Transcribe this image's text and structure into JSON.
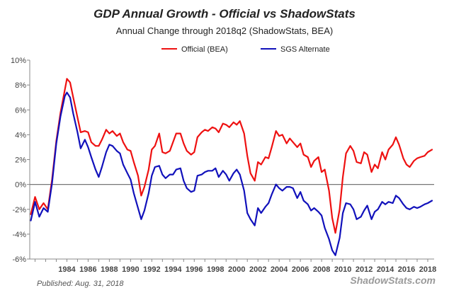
{
  "chart_data": {
    "type": "line",
    "title": "GDP Annual Growth - Official vs ShadowStats",
    "subtitle": "Annual Change through 2018q2  (ShadowStats, BEA)",
    "xlabel": "",
    "ylabel": "",
    "ylim": [
      -6,
      10
    ],
    "xlim": [
      1980.5,
      2018.6
    ],
    "grid": false,
    "legend_position": "top",
    "y_ticks": [
      -6,
      -4,
      -2,
      0,
      2,
      4,
      6,
      8,
      10
    ],
    "y_tick_labels": [
      "-6%",
      "-4%",
      "-2%",
      "0%",
      "2%",
      "4%",
      "6%",
      "8%",
      "10%"
    ],
    "x_ticks": [
      1984,
      1986,
      1988,
      1990,
      1992,
      1994,
      1996,
      1998,
      2000,
      2002,
      2004,
      2006,
      2008,
      2010,
      2012,
      2014,
      2016,
      2018
    ],
    "x_tick_labels": [
      "1984",
      "1986",
      "1988",
      "1990",
      "1992",
      "1994",
      "1996",
      "1998",
      "2000",
      "2002",
      "2004",
      "2006",
      "2008",
      "2010",
      "2012",
      "2014",
      "2016",
      "2018"
    ],
    "series": [
      {
        "name": "Official (BEA)",
        "color": "#ee1111",
        "x": [
          1980.6,
          1981.0,
          1981.4,
          1981.8,
          1982.2,
          1982.6,
          1983.0,
          1983.4,
          1983.8,
          1984.0,
          1984.3,
          1984.6,
          1985.0,
          1985.3,
          1985.7,
          1986.0,
          1986.3,
          1986.7,
          1987.0,
          1987.3,
          1987.7,
          1988.0,
          1988.3,
          1988.7,
          1989.0,
          1989.3,
          1989.7,
          1990.0,
          1990.3,
          1990.7,
          1991.0,
          1991.3,
          1991.7,
          1992.0,
          1992.3,
          1992.7,
          1993.0,
          1993.3,
          1993.7,
          1994.0,
          1994.3,
          1994.7,
          1995.0,
          1995.3,
          1995.7,
          1996.0,
          1996.3,
          1996.7,
          1997.0,
          1997.3,
          1997.7,
          1998.0,
          1998.3,
          1998.7,
          1999.0,
          1999.3,
          1999.7,
          2000.0,
          2000.3,
          2000.7,
          2001.0,
          2001.3,
          2001.7,
          2002.0,
          2002.3,
          2002.7,
          2003.0,
          2003.3,
          2003.7,
          2004.0,
          2004.3,
          2004.7,
          2005.0,
          2005.3,
          2005.7,
          2006.0,
          2006.3,
          2006.7,
          2007.0,
          2007.3,
          2007.7,
          2008.0,
          2008.3,
          2008.7,
          2009.0,
          2009.3,
          2009.7,
          2010.0,
          2010.3,
          2010.7,
          2011.0,
          2011.3,
          2011.7,
          2012.0,
          2012.3,
          2012.7,
          2013.0,
          2013.3,
          2013.7,
          2014.0,
          2014.3,
          2014.7,
          2015.0,
          2015.3,
          2015.7,
          2016.0,
          2016.3,
          2016.7,
          2017.0,
          2017.3,
          2017.7,
          2018.0,
          2018.4
        ],
        "values": [
          -2.4,
          -1.0,
          -2.0,
          -1.5,
          -2.0,
          0.4,
          3.5,
          5.8,
          7.6,
          8.5,
          8.2,
          7.0,
          5.4,
          4.2,
          4.3,
          4.2,
          3.4,
          3.1,
          3.1,
          3.6,
          4.4,
          4.1,
          4.3,
          3.9,
          4.1,
          3.4,
          2.8,
          2.7,
          1.8,
          0.7,
          -0.9,
          -0.2,
          1.2,
          2.8,
          3.1,
          4.1,
          2.6,
          2.5,
          2.7,
          3.4,
          4.1,
          4.1,
          3.3,
          2.7,
          2.4,
          2.6,
          3.8,
          4.2,
          4.4,
          4.3,
          4.6,
          4.5,
          4.2,
          4.9,
          4.8,
          4.6,
          5.0,
          4.8,
          5.1,
          4.1,
          2.3,
          0.9,
          0.3,
          1.8,
          1.6,
          2.2,
          2.1,
          3.0,
          4.3,
          3.9,
          4.0,
          3.3,
          3.7,
          3.4,
          3.0,
          3.3,
          2.4,
          2.2,
          1.4,
          1.9,
          2.2,
          1.0,
          1.2,
          -0.5,
          -2.7,
          -3.9,
          -2.0,
          0.6,
          2.5,
          3.1,
          2.7,
          1.8,
          1.7,
          2.6,
          2.4,
          1.0,
          1.6,
          1.3,
          2.6,
          2.0,
          2.8,
          3.2,
          3.8,
          3.2,
          2.1,
          1.6,
          1.4,
          1.9,
          2.1,
          2.2,
          2.3,
          2.6,
          2.8
        ]
      },
      {
        "name": "SGS Alternate",
        "color": "#1111bb",
        "x": [
          1980.6,
          1981.0,
          1981.4,
          1981.8,
          1982.2,
          1982.6,
          1983.0,
          1983.4,
          1983.8,
          1984.0,
          1984.3,
          1984.6,
          1985.0,
          1985.3,
          1985.7,
          1986.0,
          1986.3,
          1986.7,
          1987.0,
          1987.3,
          1987.7,
          1988.0,
          1988.3,
          1988.7,
          1989.0,
          1989.3,
          1989.7,
          1990.0,
          1990.3,
          1990.7,
          1991.0,
          1991.3,
          1991.7,
          1992.0,
          1992.3,
          1992.7,
          1993.0,
          1993.3,
          1993.7,
          1994.0,
          1994.3,
          1994.7,
          1995.0,
          1995.3,
          1995.7,
          1996.0,
          1996.3,
          1996.7,
          1997.0,
          1997.3,
          1997.7,
          1998.0,
          1998.3,
          1998.7,
          1999.0,
          1999.3,
          1999.7,
          2000.0,
          2000.3,
          2000.7,
          2001.0,
          2001.3,
          2001.7,
          2002.0,
          2002.3,
          2002.7,
          2003.0,
          2003.3,
          2003.7,
          2004.0,
          2004.3,
          2004.7,
          2005.0,
          2005.3,
          2005.7,
          2006.0,
          2006.3,
          2006.7,
          2007.0,
          2007.3,
          2007.7,
          2008.0,
          2008.3,
          2008.7,
          2009.0,
          2009.3,
          2009.7,
          2010.0,
          2010.3,
          2010.7,
          2011.0,
          2011.3,
          2011.7,
          2012.0,
          2012.3,
          2012.7,
          2013.0,
          2013.3,
          2013.7,
          2014.0,
          2014.3,
          2014.7,
          2015.0,
          2015.3,
          2015.7,
          2016.0,
          2016.3,
          2016.7,
          2017.0,
          2017.3,
          2017.7,
          2018.0,
          2018.4
        ],
        "values": [
          -2.9,
          -1.4,
          -2.6,
          -1.9,
          -2.2,
          0.1,
          3.3,
          5.5,
          7.1,
          7.4,
          7.0,
          5.7,
          4.2,
          2.9,
          3.6,
          3.0,
          2.2,
          1.2,
          0.6,
          1.4,
          2.6,
          3.2,
          3.1,
          2.7,
          2.5,
          1.6,
          0.9,
          0.4,
          -0.7,
          -1.9,
          -2.8,
          -2.1,
          -0.7,
          0.7,
          1.4,
          1.5,
          0.8,
          0.5,
          0.8,
          0.8,
          1.2,
          1.3,
          0.3,
          -0.3,
          -0.6,
          -0.5,
          0.7,
          0.8,
          1.0,
          1.1,
          1.1,
          1.3,
          0.6,
          1.1,
          0.8,
          0.3,
          0.9,
          1.2,
          0.8,
          -0.5,
          -2.3,
          -2.8,
          -3.3,
          -1.9,
          -2.3,
          -1.8,
          -1.5,
          -0.8,
          0.0,
          -0.3,
          -0.5,
          -0.2,
          -0.2,
          -0.3,
          -1.1,
          -0.6,
          -1.3,
          -1.6,
          -2.1,
          -1.9,
          -2.2,
          -2.5,
          -3.5,
          -4.4,
          -5.3,
          -5.7,
          -4.3,
          -2.3,
          -1.5,
          -1.6,
          -2.0,
          -2.8,
          -2.6,
          -2.1,
          -1.7,
          -2.8,
          -2.2,
          -2.0,
          -1.4,
          -1.6,
          -1.4,
          -1.5,
          -0.9,
          -1.1,
          -1.6,
          -1.9,
          -2.0,
          -1.8,
          -1.9,
          -1.8,
          -1.6,
          -1.5,
          -1.3
        ]
      }
    ]
  },
  "footer": {
    "published": "Published: Aug. 31, 2018",
    "brand": "ShadowStats.com"
  }
}
